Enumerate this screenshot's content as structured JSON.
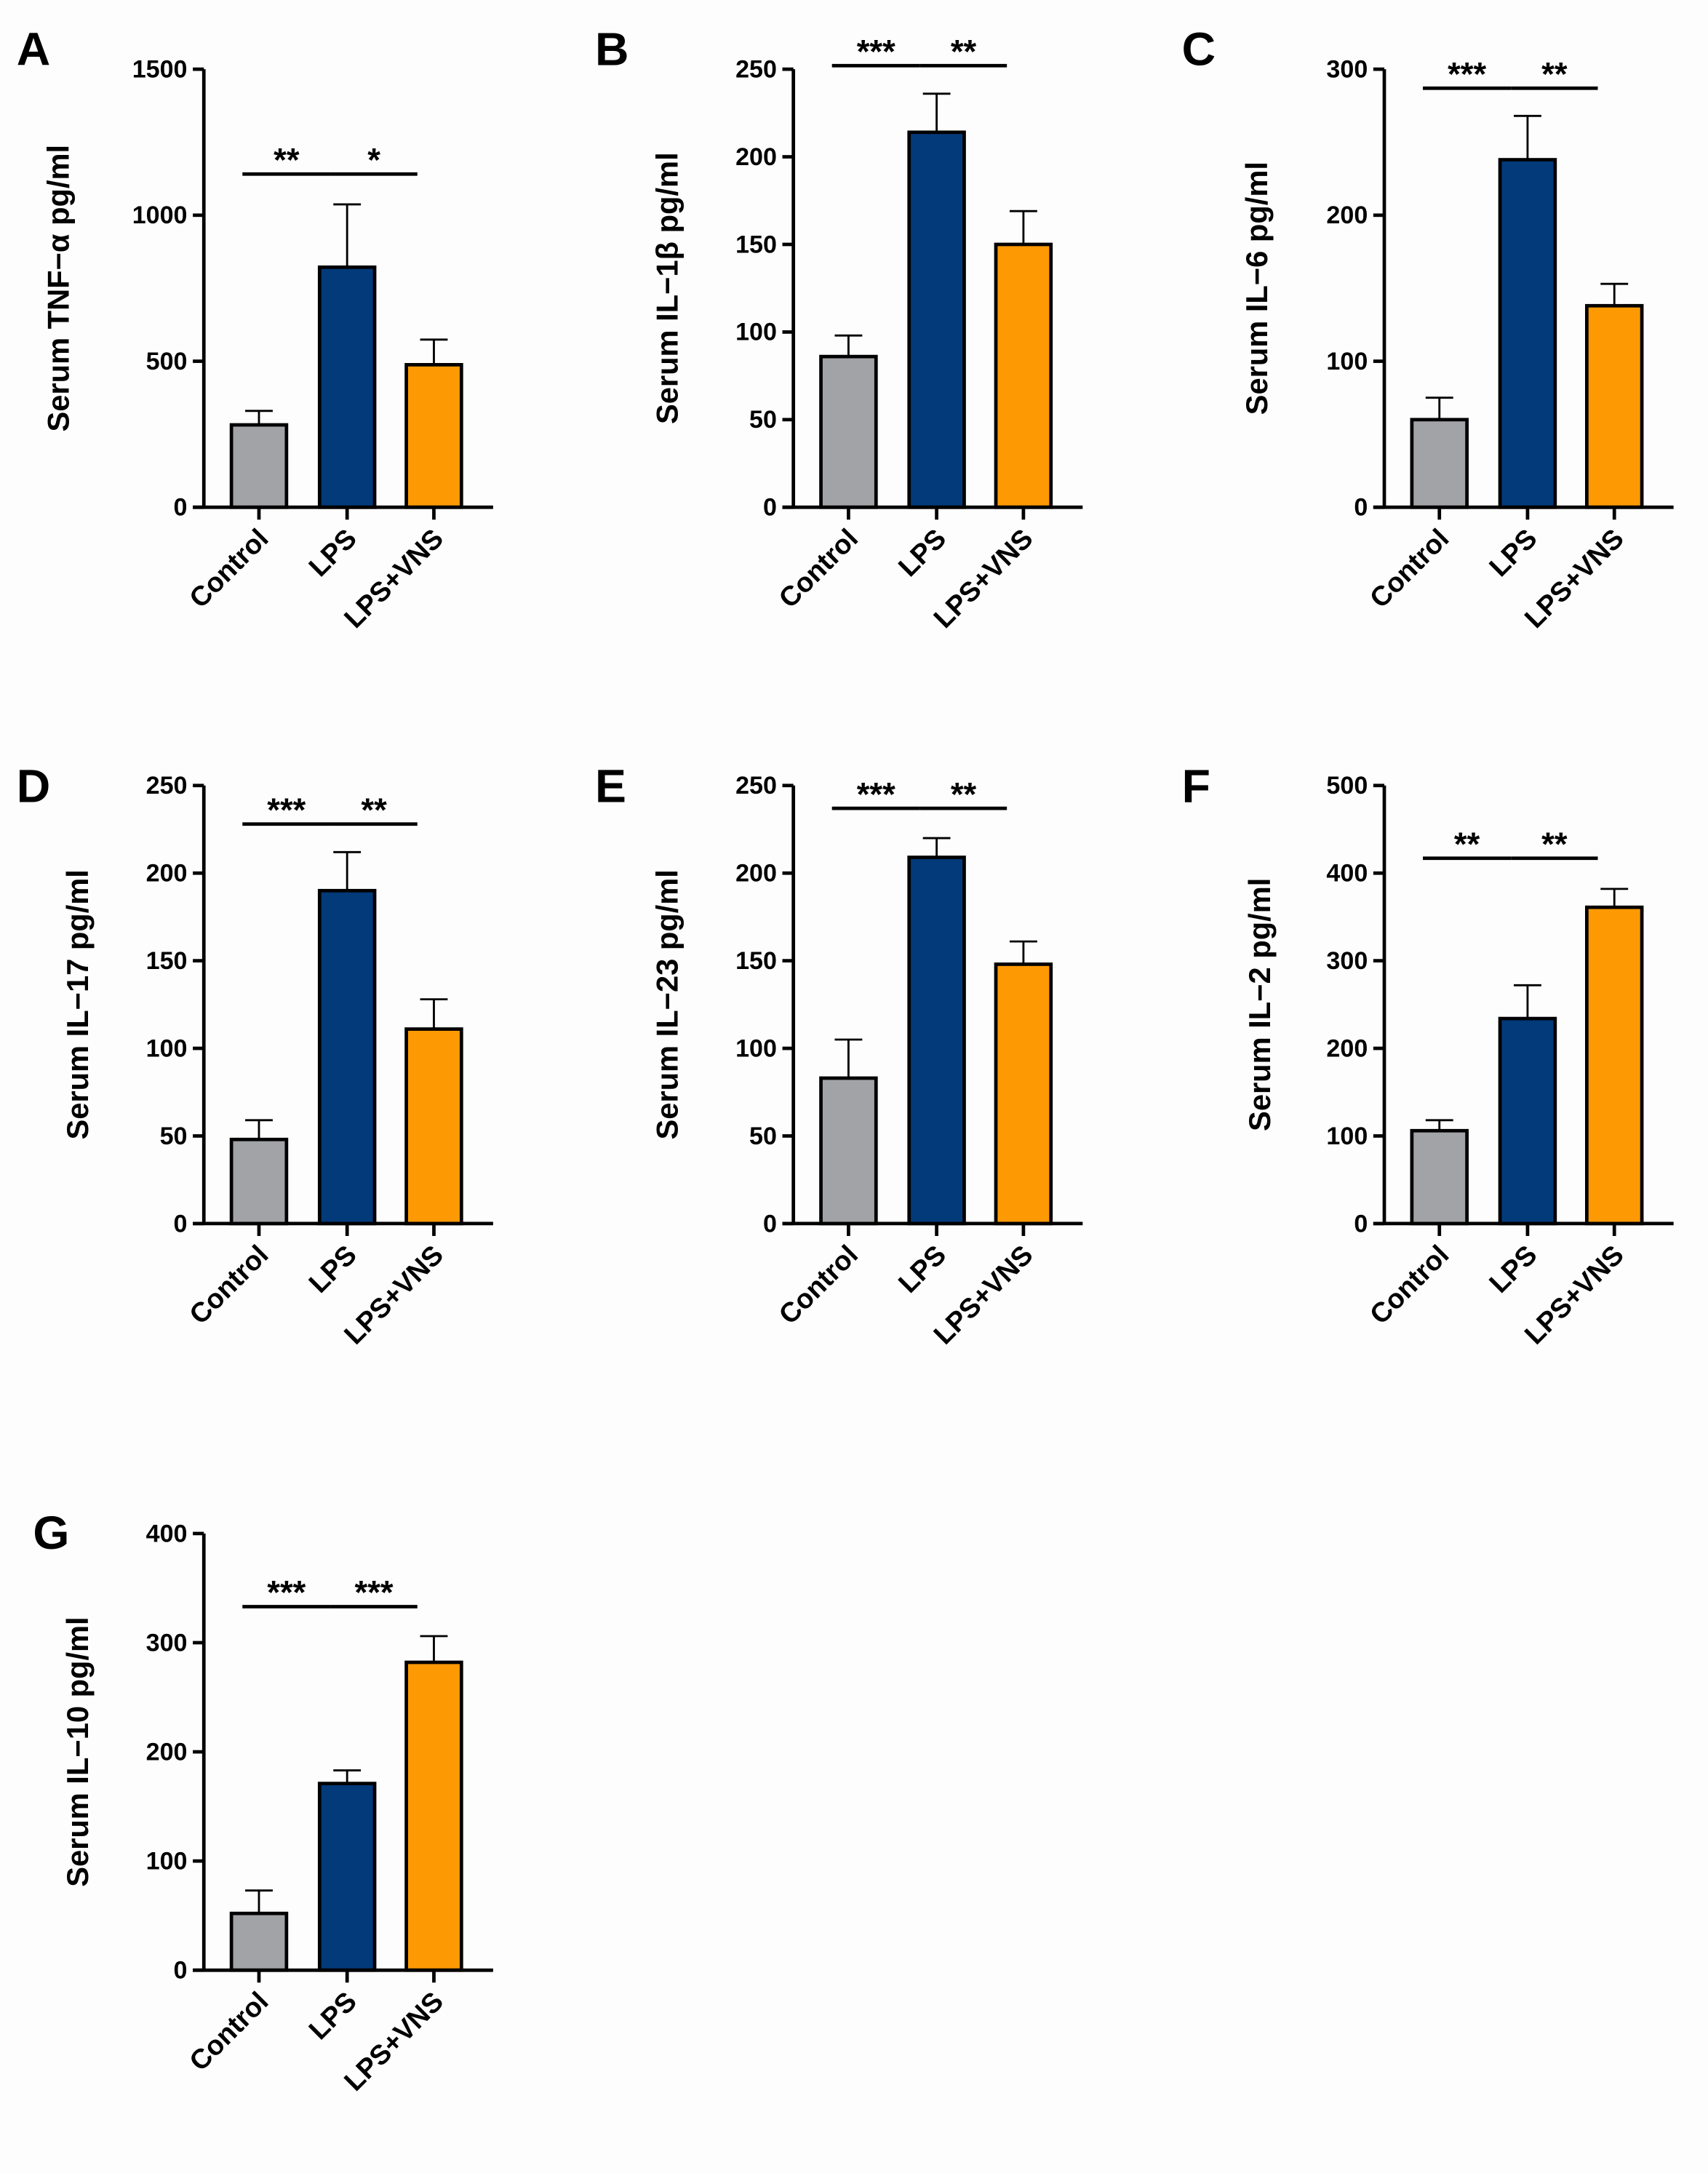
{
  "chart_data": [
    {
      "panel": "A",
      "type": "bar",
      "ylabel": "Serum TNF−α pg/ml",
      "categories": [
        "Control",
        "LPS",
        "LPS+VNS"
      ],
      "values": [
        282,
        822,
        488
      ],
      "errors": [
        48,
        215,
        86
      ],
      "ylim": [
        0,
        1500
      ],
      "yticks": [
        "0",
        "500",
        "1000",
        "1500"
      ],
      "significance": [
        {
          "from": 0,
          "to": 1,
          "label": "**",
          "y": 1141
        },
        {
          "from": 1,
          "to": 2,
          "label": "*",
          "y": 1141
        }
      ]
    },
    {
      "panel": "B",
      "type": "bar",
      "ylabel": "Serum IL−1β pg/ml",
      "categories": [
        "Control",
        "LPS",
        "LPS+VNS"
      ],
      "values": [
        86,
        214,
        150
      ],
      "errors": [
        12,
        22,
        19
      ],
      "ylim": [
        0,
        250
      ],
      "yticks": [
        "0",
        "50",
        "100",
        "150",
        "200",
        "250"
      ],
      "significance": [
        {
          "from": 0,
          "to": 1,
          "label": "***",
          "y": 252
        },
        {
          "from": 1,
          "to": 2,
          "label": "**",
          "y": 252
        }
      ]
    },
    {
      "panel": "C",
      "type": "bar",
      "ylabel": "Serum IL−6 pg/ml",
      "categories": [
        "Control",
        "LPS",
        "LPS+VNS"
      ],
      "values": [
        60,
        238,
        138
      ],
      "errors": [
        15,
        30,
        15
      ],
      "ylim": [
        0,
        300
      ],
      "yticks": [
        "0",
        "100",
        "200",
        "300"
      ],
      "significance": [
        {
          "from": 0,
          "to": 1,
          "label": "***",
          "y": 287
        },
        {
          "from": 1,
          "to": 2,
          "label": "**",
          "y": 287
        }
      ]
    },
    {
      "panel": "D",
      "type": "bar",
      "ylabel": "Serum IL−17 pg/ml",
      "categories": [
        "Control",
        "LPS",
        "LPS+VNS"
      ],
      "values": [
        48,
        190,
        111
      ],
      "errors": [
        11,
        22,
        17
      ],
      "ylim": [
        0,
        250
      ],
      "yticks": [
        "0",
        "50",
        "100",
        "150",
        "200",
        "250"
      ],
      "significance": [
        {
          "from": 0,
          "to": 1,
          "label": "***",
          "y": 228
        },
        {
          "from": 1,
          "to": 2,
          "label": "**",
          "y": 228
        }
      ]
    },
    {
      "panel": "E",
      "type": "bar",
      "ylabel": "Serum IL−23 pg/ml",
      "categories": [
        "Control",
        "LPS",
        "LPS+VNS"
      ],
      "values": [
        83,
        209,
        148
      ],
      "errors": [
        22,
        11,
        13
      ],
      "ylim": [
        0,
        250
      ],
      "yticks": [
        "0",
        "50",
        "100",
        "150",
        "200",
        "250"
      ],
      "significance": [
        {
          "from": 0,
          "to": 1,
          "label": "***",
          "y": 237
        },
        {
          "from": 1,
          "to": 2,
          "label": "**",
          "y": 237
        }
      ]
    },
    {
      "panel": "F",
      "type": "bar",
      "ylabel": "Serum IL−2 pg/ml",
      "categories": [
        "Control",
        "LPS",
        "LPS+VNS"
      ],
      "values": [
        106,
        234,
        361
      ],
      "errors": [
        12,
        38,
        21
      ],
      "ylim": [
        0,
        500
      ],
      "yticks": [
        "0",
        "100",
        "200",
        "300",
        "400",
        "500"
      ],
      "significance": [
        {
          "from": 0,
          "to": 1,
          "label": "**",
          "y": 417
        },
        {
          "from": 1,
          "to": 2,
          "label": "**",
          "y": 417
        }
      ]
    },
    {
      "panel": "G",
      "type": "bar",
      "ylabel": "Serum IL−10 pg/ml",
      "categories": [
        "Control",
        "LPS",
        "LPS+VNS"
      ],
      "values": [
        52,
        171,
        282
      ],
      "errors": [
        21,
        12,
        24
      ],
      "ylim": [
        0,
        400
      ],
      "yticks": [
        "0",
        "100",
        "200",
        "300",
        "400"
      ],
      "significance": [
        {
          "from": 0,
          "to": 1,
          "label": "***",
          "y": 333
        },
        {
          "from": 1,
          "to": 2,
          "label": "***",
          "y": 333
        }
      ]
    }
  ],
  "colors": {
    "Control": "#a2a3a7",
    "LPS": "#023a7a",
    "LPS+VNS": "#fd9903"
  }
}
